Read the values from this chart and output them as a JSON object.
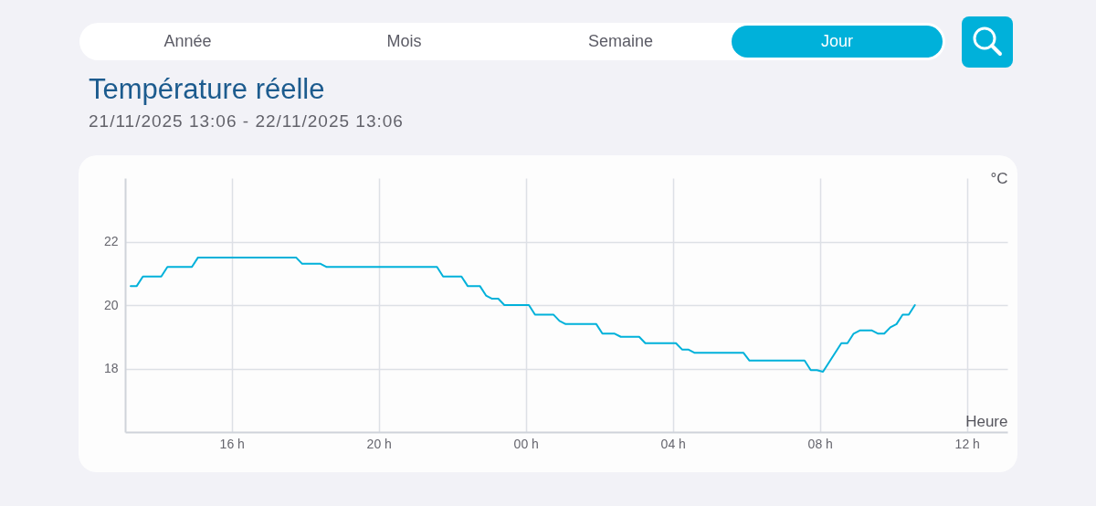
{
  "chart_data": [
    {
      "type": "other",
      "categories": [
        "Année",
        "Mois",
        "Semaine",
        "Jour"
      ],
      "colors": [
        "#ffffff",
        "#ffffff",
        "#ffffff",
        "#00b1da"
      ]
    },
    {
      "type": "line",
      "title": "Température réelle",
      "subtitle": "21/11/2025 13:06 - 22/11/2025 13:06",
      "xlabel": "Heure",
      "ylabel": "°C",
      "x": [
        "2025-11-21T13:15",
        "2025-11-21T13:25",
        "2025-11-21T13:35",
        "2025-11-21T14:05",
        "2025-11-21T14:15",
        "2025-11-21T14:55",
        "2025-11-21T15:05",
        "2025-11-21T17:45",
        "2025-11-21T17:55",
        "2025-11-21T18:25",
        "2025-11-21T18:35",
        "2025-11-21T21:35",
        "2025-11-21T21:45",
        "2025-11-21T22:15",
        "2025-11-21T22:25",
        "2025-11-21T22:45",
        "2025-11-21T22:55",
        "2025-11-21T23:05",
        "2025-11-21T23:15",
        "2025-11-21T23:25",
        "2025-11-22T00:05",
        "2025-11-22T00:15",
        "2025-11-22T00:45",
        "2025-11-22T00:55",
        "2025-11-22T01:05",
        "2025-11-22T01:55",
        "2025-11-22T02:05",
        "2025-11-22T02:25",
        "2025-11-22T02:35",
        "2025-11-22T03:05",
        "2025-11-22T03:15",
        "2025-11-22T04:05",
        "2025-11-22T04:15",
        "2025-11-22T04:25",
        "2025-11-22T04:35",
        "2025-11-22T05:55",
        "2025-11-22T06:05",
        "2025-11-22T07:35",
        "2025-11-22T07:45",
        "2025-11-22T07:55",
        "2025-11-22T08:05",
        "2025-11-22T08:35",
        "2025-11-22T08:45",
        "2025-11-22T08:55",
        "2025-11-22T09:05",
        "2025-11-22T09:25",
        "2025-11-22T09:35",
        "2025-11-22T09:45",
        "2025-11-22T09:55",
        "2025-11-22T10:05",
        "2025-11-22T10:15",
        "2025-11-22T10:25",
        "2025-11-22T10:35"
      ],
      "series": [
        {
          "color": "#00b1da",
          "values": [
            20.6,
            20.6,
            20.9,
            20.9,
            21.2,
            21.2,
            21.5,
            21.5,
            21.3,
            21.3,
            21.2,
            21.2,
            20.9,
            20.9,
            20.6,
            20.6,
            20.3,
            20.2,
            20.2,
            20.0,
            20.0,
            19.7,
            19.7,
            19.5,
            19.4,
            19.4,
            19.1,
            19.1,
            19.0,
            19.0,
            18.8,
            18.8,
            18.6,
            18.6,
            18.5,
            18.5,
            18.25,
            18.25,
            17.95,
            17.95,
            17.9,
            18.8,
            18.8,
            19.1,
            19.2,
            19.2,
            19.1,
            19.1,
            19.3,
            19.4,
            19.7,
            19.7,
            20.0
          ]
        }
      ],
      "xlim": [
        "2025-11-21T13:06",
        "2025-11-22T13:06"
      ],
      "ylim": [
        16,
        24
      ],
      "xticks": [
        {
          "value": "2025-11-21T16:00",
          "label": "16 h"
        },
        {
          "value": "2025-11-21T20:00",
          "label": "20 h"
        },
        {
          "value": "2025-11-22T00:00",
          "label": "00 h"
        },
        {
          "value": "2025-11-22T04:00",
          "label": "04 h"
        },
        {
          "value": "2025-11-22T08:00",
          "label": "08 h"
        },
        {
          "value": "2025-11-22T12:00",
          "label": "12 h"
        }
      ],
      "yticks": [
        18,
        20,
        22
      ],
      "grid": true
    }
  ]
}
